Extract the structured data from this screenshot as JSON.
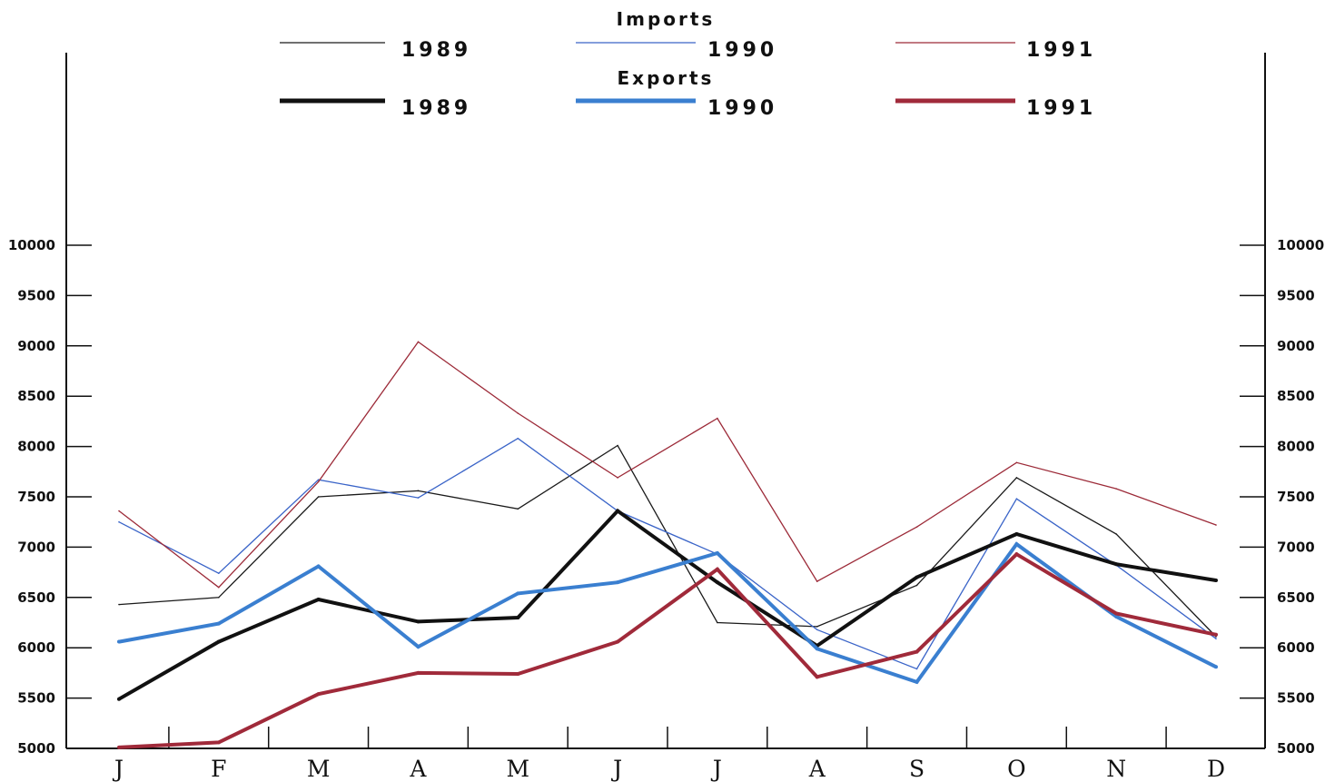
{
  "chart_data": {
    "type": "line",
    "categories": [
      "J",
      "F",
      "M",
      "A",
      "M",
      "J",
      "J",
      "A",
      "S",
      "O",
      "N",
      "D"
    ],
    "ylim": [
      5000,
      10000
    ],
    "yticks": [
      5000,
      5500,
      6000,
      6500,
      7000,
      7500,
      8000,
      8500,
      9000,
      9500,
      10000
    ],
    "grid": false,
    "legend_position": "top",
    "legend_groups": [
      {
        "title": "Imports",
        "series_indices": [
          0,
          1,
          2
        ]
      },
      {
        "title": "Exports",
        "series_indices": [
          3,
          4,
          5
        ]
      }
    ],
    "series": [
      {
        "name": "1989",
        "group": "Imports",
        "color": "#1a1a1a",
        "weight": "thin",
        "values": [
          6430,
          6500,
          7500,
          7560,
          7380,
          8010,
          6250,
          6210,
          6620,
          7690,
          7130,
          6110
        ]
      },
      {
        "name": "1990",
        "group": "Imports",
        "color": "#3a64c8",
        "weight": "thin",
        "values": [
          7250,
          6740,
          7670,
          7490,
          8080,
          7360,
          6930,
          6180,
          5790,
          7480,
          6820,
          6090
        ]
      },
      {
        "name": "1991",
        "group": "Imports",
        "color": "#9c2a38",
        "weight": "thin",
        "values": [
          7360,
          6600,
          7650,
          9040,
          8330,
          7690,
          8280,
          6660,
          7200,
          7840,
          7580,
          7220
        ]
      },
      {
        "name": "1989",
        "group": "Exports",
        "color": "#111111",
        "weight": "thick",
        "values": [
          5490,
          6060,
          6480,
          6260,
          6300,
          7360,
          6650,
          6020,
          6700,
          7130,
          6830,
          6670
        ]
      },
      {
        "name": "1990",
        "group": "Exports",
        "color": "#3a7fd0",
        "weight": "thick",
        "values": [
          6060,
          6240,
          6810,
          6010,
          6540,
          6650,
          6940,
          5990,
          5660,
          7030,
          6310,
          5810
        ]
      },
      {
        "name": "1991",
        "group": "Exports",
        "color": "#a02a3a",
        "weight": "thick",
        "values": [
          5010,
          5060,
          5540,
          5750,
          5740,
          6060,
          6780,
          5710,
          5960,
          6930,
          6340,
          6130
        ]
      }
    ]
  }
}
